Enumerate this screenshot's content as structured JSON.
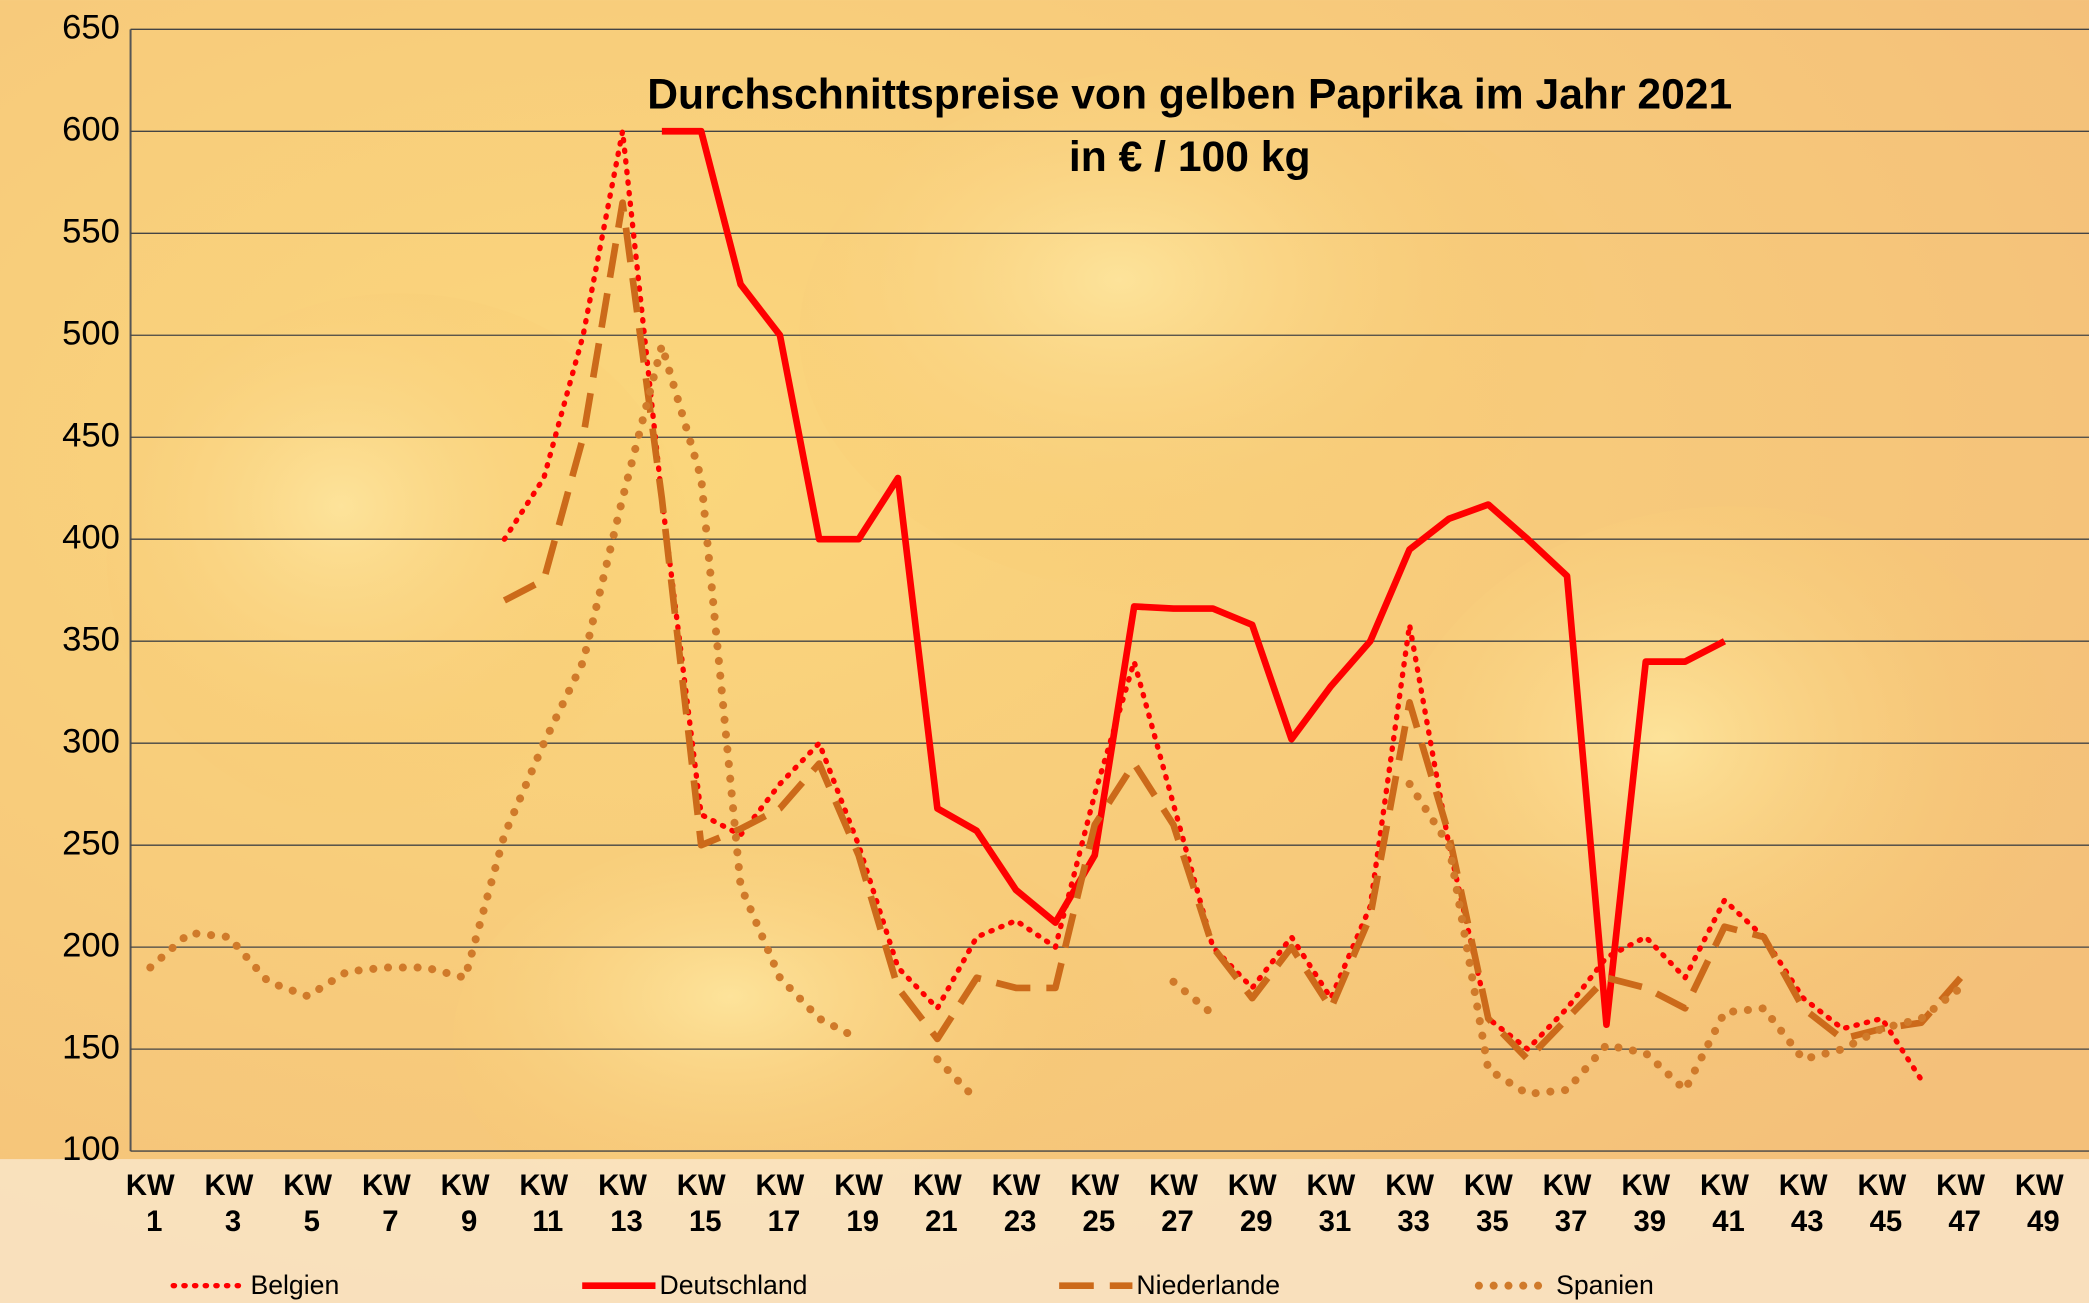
{
  "chart_data": {
    "type": "line",
    "title": "Durchschnittspreise von gelben Paprika im Jahr 2021",
    "subtitle": "in € / 100 kg",
    "categories": [
      "KW 1",
      null,
      "KW 3",
      null,
      "KW 5",
      null,
      "KW 7",
      null,
      "KW 9",
      null,
      "KW 11",
      null,
      "KW 13",
      null,
      "KW 15",
      null,
      "KW 17",
      null,
      "KW 19",
      null,
      "KW 21",
      null,
      "KW 23",
      null,
      "KW 25",
      null,
      "KW 27",
      null,
      "KW 29",
      null,
      "KW 31",
      null,
      "KW 33",
      null,
      "KW 35",
      null,
      "KW 37",
      null,
      "KW 39",
      null,
      "KW 41",
      null,
      "KW 43",
      null,
      "KW 45",
      null,
      "KW 47",
      null,
      "KW 49",
      null
    ],
    "ylim": [
      100,
      650
    ],
    "yticks": [
      100,
      150,
      200,
      250,
      300,
      350,
      400,
      450,
      500,
      550,
      600,
      650
    ],
    "grid": true,
    "series": [
      {
        "name": "Belgien",
        "color": "#ff0000",
        "style": "dotted",
        "values": [
          null,
          null,
          null,
          null,
          null,
          null,
          null,
          null,
          null,
          400,
          430,
          500,
          600,
          420,
          265,
          255,
          280,
          300,
          250,
          190,
          170,
          205,
          213,
          200,
          275,
          340,
          270,
          200,
          180,
          205,
          175,
          220,
          358,
          250,
          165,
          150,
          170,
          195,
          205,
          185,
          223,
          205,
          175,
          160,
          165,
          135,
          null,
          null,
          null,
          null
        ]
      },
      {
        "name": "Deutschland",
        "color": "#ff0000",
        "style": "solid",
        "values": [
          null,
          null,
          null,
          null,
          null,
          null,
          null,
          null,
          null,
          null,
          null,
          null,
          null,
          600,
          600,
          525,
          500,
          400,
          400,
          430,
          268,
          257,
          228,
          212,
          245,
          367,
          366,
          366,
          358,
          302,
          328,
          350,
          395,
          410,
          417,
          400,
          382,
          162,
          340,
          340,
          350,
          null,
          null,
          null,
          null,
          null,
          null,
          null,
          null,
          null
        ]
      },
      {
        "name": "Niederlande",
        "color": "#cc6a1a",
        "style": "dashed",
        "values": [
          null,
          null,
          null,
          null,
          null,
          null,
          null,
          null,
          null,
          370,
          380,
          450,
          565,
          420,
          250,
          258,
          268,
          290,
          245,
          180,
          155,
          185,
          180,
          180,
          260,
          290,
          260,
          200,
          175,
          200,
          170,
          215,
          320,
          255,
          165,
          145,
          165,
          185,
          180,
          170,
          210,
          205,
          170,
          155,
          160,
          163,
          185,
          null,
          null,
          null
        ]
      },
      {
        "name": "Spanien",
        "color": "#d07a2a",
        "style": "round",
        "values": [
          190,
          207,
          205,
          183,
          176,
          188,
          190,
          190,
          185,
          255,
          300,
          340,
          420,
          495,
          430,
          230,
          185,
          165,
          155,
          null,
          145,
          125,
          null,
          null,
          null,
          null,
          183,
          167,
          null,
          null,
          null,
          null,
          280,
          250,
          140,
          128,
          130,
          152,
          148,
          130,
          168,
          170,
          145,
          150,
          160,
          165,
          180,
          null,
          null,
          null
        ]
      }
    ]
  }
}
